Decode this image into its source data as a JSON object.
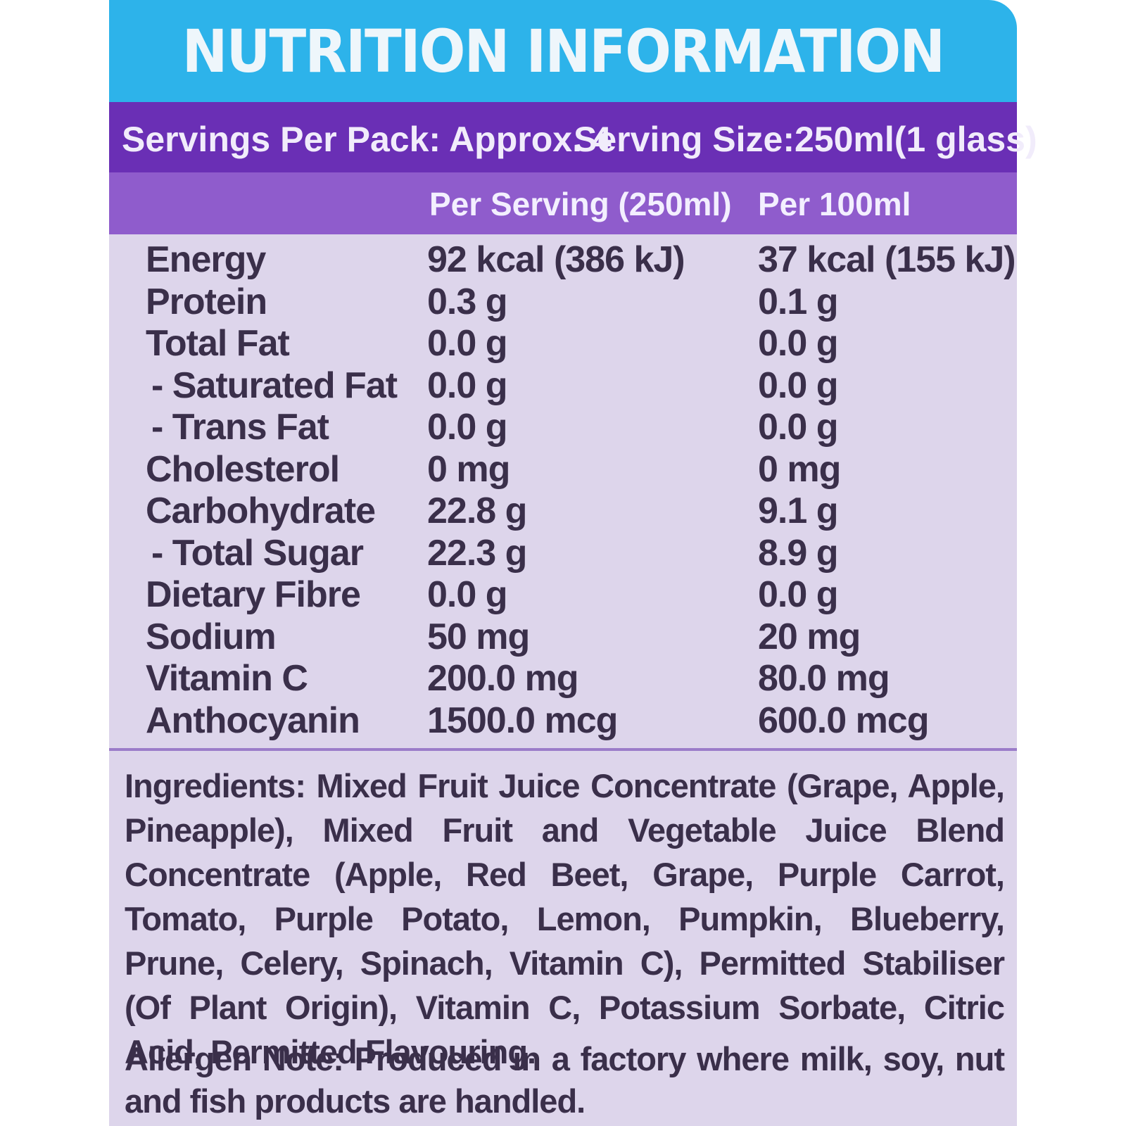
{
  "title": "NUTRITION INFORMATION",
  "servings_per_pack": "Servings Per Pack: Approx. 4",
  "serving_size": "Serving Size:250ml(1 glass)",
  "columns": {
    "per_serving": "Per Serving (250ml)",
    "per_100ml": "Per 100ml"
  },
  "rows": [
    {
      "name": "Energy",
      "per_serving": "92 kcal (386 kJ)",
      "per_100ml": "37 kcal (155 kJ)"
    },
    {
      "name": "Protein",
      "per_serving": "0.3 g",
      "per_100ml": "0.1 g"
    },
    {
      "name": "Total Fat",
      "per_serving": "0.0 g",
      "per_100ml": "0.0 g"
    },
    {
      "name": "- Saturated Fat",
      "per_serving": "0.0 g",
      "per_100ml": "0.0 g"
    },
    {
      "name": "- Trans Fat",
      "per_serving": "0.0 g",
      "per_100ml": "0.0 g"
    },
    {
      "name": "Cholesterol",
      "per_serving": "0 mg",
      "per_100ml": "0 mg"
    },
    {
      "name": "Carbohydrate",
      "per_serving": "22.8 g",
      "per_100ml": "9.1 g"
    },
    {
      "name": "- Total Sugar",
      "per_serving": "22.3 g",
      "per_100ml": "8.9 g"
    },
    {
      "name": "Dietary Fibre",
      "per_serving": "0.0 g",
      "per_100ml": "0.0 g"
    },
    {
      "name": "Sodium",
      "per_serving": "50 mg",
      "per_100ml": "20 mg"
    },
    {
      "name": "Vitamin C",
      "per_serving": "200.0 mg",
      "per_100ml": "80.0 mg"
    },
    {
      "name": "Anthocyanin",
      "per_serving": "1500.0 mcg",
      "per_100ml": "600.0 mcg"
    }
  ],
  "ingredients": "Ingredients: Mixed Fruit Juice Concentrate (Grape, Apple, Pineapple), Mixed Fruit and Vegetable Juice Blend Concentrate (Apple, Red Beet, Grape, Purple Carrot, Tomato, Purple Potato, Lemon, Pumpkin, Blueberry, Prune, Celery, Spinach, Vitamin C), Permitted Stabiliser (Of Plant Origin), Vitamin C, Potassium Sorbate, Citric Acid, Permitted Flavouring.",
  "allergen_note": "Allergen Note: Produced in a factory where milk, soy, nut and fish products are handled.",
  "colors": {
    "blue_band": "#2db3ea",
    "purple_dark": "#6a2fb5",
    "purple_mid": "#8f5ccc",
    "lavender_body": "#ddd5eb",
    "text_dark": "#3a2f4a"
  }
}
